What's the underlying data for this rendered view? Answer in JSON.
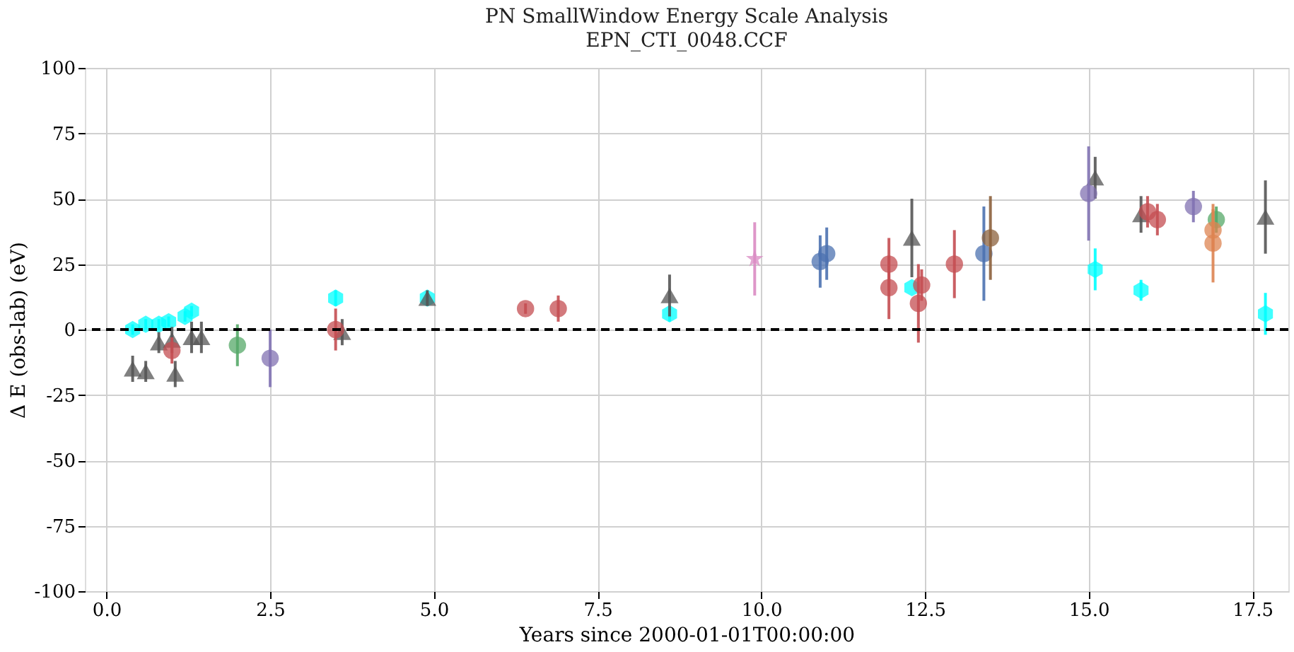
{
  "chart_data": {
    "type": "scatter",
    "title": "PN SmallWindow Energy Scale Analysis",
    "subtitle": "EPN_CTI_0048.CCF",
    "xlabel": "Years since 2000-01-01T00:00:00",
    "ylabel": "Δ E (obs-lab) (eV)",
    "xlim": [
      -0.33,
      18.05
    ],
    "xticks": [
      {
        "value": 0,
        "label": "0.0"
      },
      2.5,
      {
        "value": 5,
        "label": "5.0"
      },
      7.5,
      {
        "value": 10,
        "label": "10.0"
      },
      12.5,
      {
        "value": 15,
        "label": "15.0"
      },
      17.5
    ],
    "ylim": [
      -100,
      100
    ],
    "yticks": [
      -100,
      -75,
      -50,
      -25,
      0,
      25,
      50,
      75,
      100
    ],
    "grid": true,
    "ref_lines": [
      {
        "axis": "y",
        "value": 0,
        "label": null,
        "color": "#000000",
        "line_style": "dashed"
      }
    ],
    "series": [
      {
        "color": "#00ffff",
        "x": [
          0.4,
          0.6,
          0.8,
          0.95,
          1.2,
          1.3,
          3.5,
          4.9,
          8.6,
          12.3,
          15.1,
          15.8,
          17.7
        ],
        "values": [
          0,
          2,
          2,
          3,
          5,
          7,
          12,
          12,
          6,
          16,
          23,
          15,
          6
        ],
        "errors": [
          2,
          2,
          2,
          2,
          2,
          2,
          3,
          2,
          3,
          null,
          8,
          4,
          8
        ]
      },
      {
        "color": "#555555",
        "marker": "triangle",
        "x": [
          0.4,
          0.6,
          0.8,
          1.0,
          1.05,
          1.3,
          1.45,
          3.6,
          4.9,
          8.6,
          12.3,
          15.1,
          15.8,
          17.7
        ],
        "values": [
          -15,
          -16,
          -5,
          -4,
          -17,
          -3,
          -3,
          -1,
          12,
          13,
          35,
          58,
          44,
          43
        ],
        "errors": [
          5,
          4,
          4,
          5,
          5,
          6,
          6,
          5,
          3,
          8,
          15,
          8,
          7,
          14
        ]
      },
      {
        "color": "#c44e52",
        "marker": "circle",
        "x": [
          1.0,
          3.5,
          6.4,
          6.9,
          11.95,
          11.95,
          12.4,
          12.45,
          12.95,
          15.9,
          16.05
        ],
        "values": [
          -8,
          0,
          8,
          8,
          25,
          16,
          10,
          17,
          25,
          45,
          42
        ],
        "errors": [
          5,
          8,
          2,
          5,
          10,
          12,
          15,
          6,
          13,
          6,
          6
        ]
      },
      {
        "color": "#4c72b0",
        "marker": "circle",
        "x": [
          10.9,
          11.0,
          13.4
        ],
        "values": [
          26,
          29,
          29
        ],
        "errors": [
          10,
          10,
          18
        ]
      },
      {
        "color": "#55a868",
        "marker": "circle",
        "x": [
          2.0,
          16.95
        ],
        "values": [
          -6,
          42
        ],
        "errors": [
          8,
          5
        ]
      },
      {
        "color": "#8172b2",
        "marker": "circle",
        "x": [
          2.5,
          15.0,
          16.6
        ],
        "values": [
          -11,
          52,
          47
        ],
        "errors": [
          11,
          18,
          6
        ]
      },
      {
        "color": "#8c613c",
        "marker": "circle",
        "x": [
          13.5
        ],
        "values": [
          35
        ],
        "errors": [
          16
        ]
      },
      {
        "color": "#dd8452",
        "marker": "circle",
        "x": [
          16.9,
          16.9
        ],
        "values": [
          38,
          33
        ],
        "errors": [
          8,
          15
        ]
      },
      {
        "color": "#da8bc3",
        "marker": "star",
        "x": [
          9.9
        ],
        "values": [
          27
        ],
        "errors": [
          14
        ]
      }
    ]
  }
}
